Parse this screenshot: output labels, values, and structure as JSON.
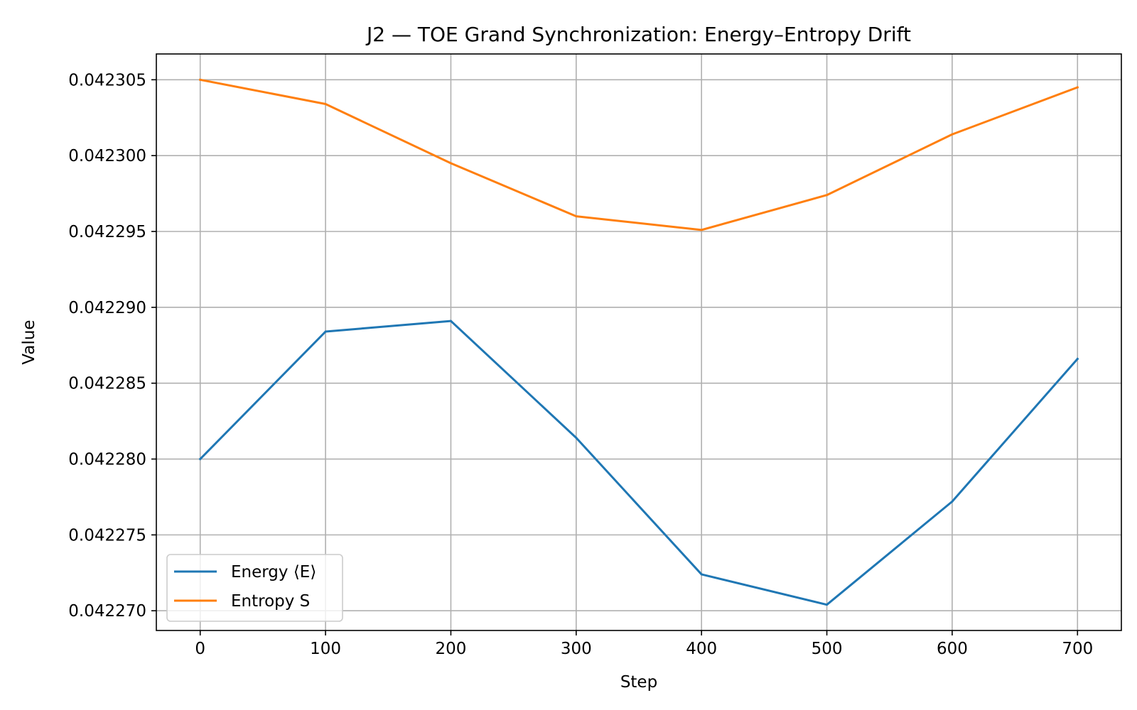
{
  "chart_data": {
    "type": "line",
    "title": "J2 — TOE Grand Synchronization: Energy–Entropy Drift",
    "xlabel": "Step",
    "ylabel": "Value",
    "x": [
      0,
      100,
      200,
      300,
      400,
      500,
      600,
      700
    ],
    "xlim": [
      -35,
      735
    ],
    "ylim": [
      0.0422687,
      0.0423067
    ],
    "xticks": [
      0,
      100,
      200,
      300,
      400,
      500,
      600,
      700
    ],
    "xtick_labels": [
      "0",
      "100",
      "200",
      "300",
      "400",
      "500",
      "600",
      "700"
    ],
    "yticks": [
      0.04227,
      0.042275,
      0.04228,
      0.042285,
      0.04229,
      0.042295,
      0.0423,
      0.042305
    ],
    "ytick_labels": [
      "0.042270",
      "0.042275",
      "0.042280",
      "0.042285",
      "0.042290",
      "0.042295",
      "0.042300",
      "0.042305"
    ],
    "grid": true,
    "legend_position": "lower-left",
    "series": [
      {
        "name": "Energy ⟨E⟩",
        "color": "#1f77b4",
        "values": [
          0.04228,
          0.0422884,
          0.0422891,
          0.0422814,
          0.0422724,
          0.0422704,
          0.0422772,
          0.0422866
        ]
      },
      {
        "name": "Entropy S",
        "color": "#ff7f0e",
        "values": [
          0.042305,
          0.0423034,
          0.0422995,
          0.042296,
          0.0422951,
          0.0422974,
          0.0423014,
          0.0423045
        ]
      }
    ]
  }
}
